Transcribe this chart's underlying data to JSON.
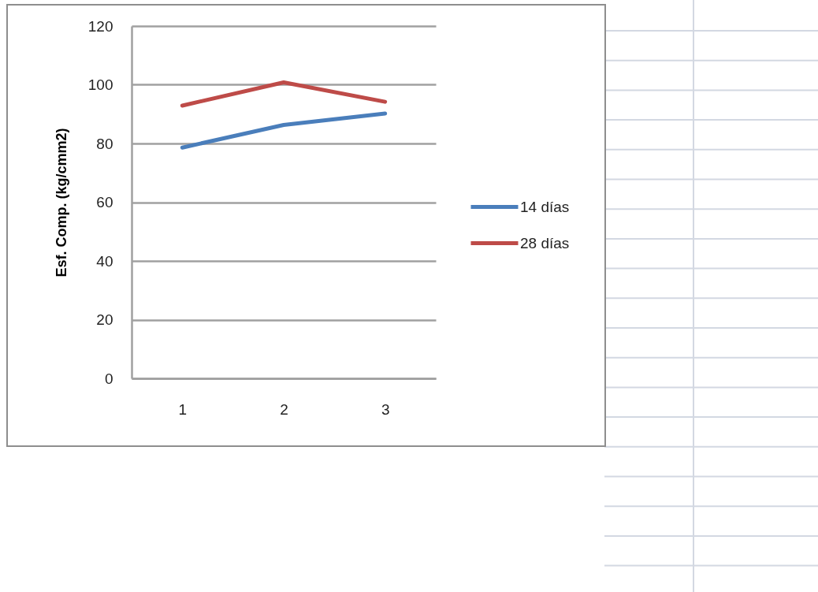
{
  "chart_data": {
    "type": "line",
    "ylabel": "Esf. Comp. (kg/cmm2)",
    "categories": [
      "1",
      "2",
      "3"
    ],
    "series": [
      {
        "name": "14 días",
        "color": "#4a7ebb",
        "values": [
          78.6,
          86.3,
          90.2
        ]
      },
      {
        "name": "28 días",
        "color": "#be4b48",
        "values": [
          92.9,
          100.8,
          94.2
        ]
      }
    ],
    "ylim": [
      0,
      120
    ],
    "yticks": [
      0,
      20,
      40,
      60,
      80,
      100,
      120
    ],
    "grid": "y",
    "legend": "right",
    "line_style": "solid"
  }
}
